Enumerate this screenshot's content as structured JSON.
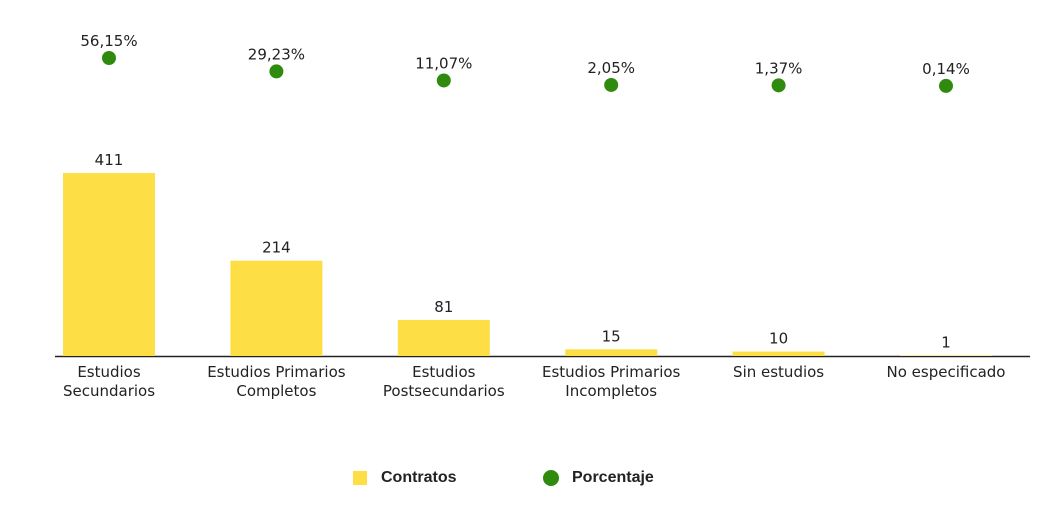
{
  "chart_data": {
    "type": "bar",
    "categories": [
      "Estudios Secundarios",
      "Estudios Primarios Completos",
      "Estudios Postsecundarios",
      "Estudios Primarios Incompletos",
      "Sin estudios",
      "No especificado"
    ],
    "series": [
      {
        "name": "Contratos",
        "color": "#fdde45",
        "type": "bar",
        "values": [
          411,
          214,
          81,
          15,
          10,
          1
        ]
      },
      {
        "name": "Porcentaje",
        "color": "#2e8b0e",
        "type": "scatter",
        "axis": "y2",
        "values": [
          56.15,
          29.23,
          11.07,
          2.05,
          1.37,
          0.14
        ],
        "value_labels": [
          "56,15%",
          "29,23%",
          "11,07%",
          "2,05%",
          "1,37%",
          "0,14%"
        ]
      }
    ],
    "legend": "bottom"
  }
}
